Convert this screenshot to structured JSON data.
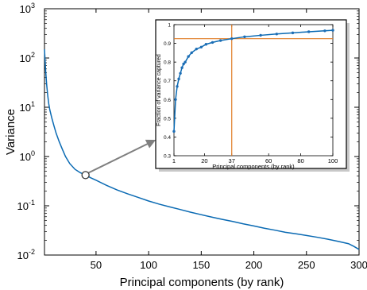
{
  "colors": {
    "series": "#0a6ab3",
    "marker": "#1c6db5",
    "threshold": "#e07b24",
    "arrow": "#7f7f7f",
    "axis": "#000000",
    "inset_shadow": "#c8c8c8"
  },
  "chart_data": [
    {
      "type": "line",
      "xlabel": "Principal components (by rank)",
      "ylabel": "Variance",
      "xlim": [
        1,
        300
      ],
      "ylim": [
        0.01,
        1000
      ],
      "yscale": "log",
      "xticks": [
        50,
        100,
        150,
        200,
        250,
        300
      ],
      "yticks": [
        {
          "value": 0.01,
          "base": "10",
          "exp": "-2"
        },
        {
          "value": 0.1,
          "base": "10",
          "exp": "-1"
        },
        {
          "value": 1,
          "base": "10",
          "exp": "0"
        },
        {
          "value": 10,
          "base": "10",
          "exp": "1"
        },
        {
          "value": 100,
          "base": "10",
          "exp": "2"
        },
        {
          "value": 1000,
          "base": "10",
          "exp": "3"
        }
      ],
      "grid": false,
      "series": [
        {
          "x": [
            1,
            2,
            3,
            4,
            5,
            6,
            8,
            10,
            12,
            15,
            18,
            21,
            25,
            30,
            35,
            40,
            45,
            50,
            60,
            70,
            80,
            90,
            100,
            110,
            120,
            130,
            140,
            150,
            160,
            170,
            180,
            190,
            200,
            210,
            220,
            230,
            240,
            250,
            260,
            270,
            280,
            290,
            295,
            300
          ],
          "y": [
            150,
            60,
            30,
            18,
            12,
            9,
            6.0,
            4.2,
            3.0,
            2.0,
            1.4,
            1.0,
            0.72,
            0.55,
            0.47,
            0.42,
            0.37,
            0.33,
            0.26,
            0.21,
            0.175,
            0.148,
            0.125,
            0.108,
            0.095,
            0.084,
            0.074,
            0.066,
            0.059,
            0.053,
            0.048,
            0.043,
            0.039,
            0.035,
            0.032,
            0.029,
            0.027,
            0.025,
            0.023,
            0.021,
            0.019,
            0.017,
            0.015,
            0.013
          ]
        }
      ],
      "annotations": [
        {
          "type": "circle-marker",
          "x": 40,
          "y": 0.42
        },
        {
          "type": "arrow",
          "from": {
            "x": 40,
            "y": 0.42
          },
          "to": "inset"
        }
      ]
    },
    {
      "type": "line",
      "xlabel": "Principal components (by rank)",
      "ylabel": "Fraction of variance captured",
      "xlim": [
        1,
        100
      ],
      "ylim": [
        0.3,
        1.0
      ],
      "xticks": [
        1,
        20,
        37,
        60,
        80,
        100
      ],
      "yticks": [
        0.3,
        0.4,
        0.5,
        0.6,
        0.7,
        0.8,
        0.9,
        1
      ],
      "grid": false,
      "markers": true,
      "series": [
        {
          "x": [
            1,
            2,
            3,
            4,
            5,
            6,
            7,
            8,
            10,
            12,
            15,
            18,
            21,
            25,
            30,
            37,
            45,
            55,
            65,
            75,
            85,
            95,
            100
          ],
          "y": [
            0.43,
            0.6,
            0.67,
            0.71,
            0.74,
            0.77,
            0.79,
            0.8,
            0.83,
            0.85,
            0.87,
            0.88,
            0.895,
            0.905,
            0.915,
            0.925,
            0.935,
            0.943,
            0.95,
            0.956,
            0.962,
            0.967,
            0.97
          ]
        }
      ],
      "reference_lines": [
        {
          "orientation": "vertical",
          "x": 37
        },
        {
          "orientation": "horizontal",
          "y": 0.925
        }
      ]
    }
  ]
}
